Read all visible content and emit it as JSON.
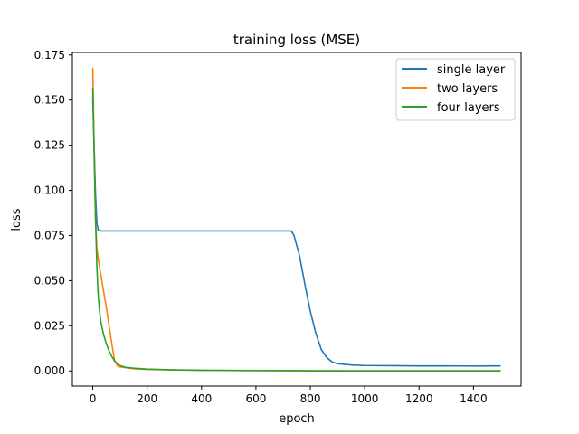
{
  "chart_data": {
    "type": "line",
    "title": "training loss (MSE)",
    "xlabel": "epoch",
    "ylabel": "loss",
    "xlim": [
      -75,
      1575
    ],
    "ylim": [
      -0.0084,
      0.1764
    ],
    "xticks": [
      0,
      200,
      400,
      600,
      800,
      1000,
      1200,
      1400
    ],
    "yticks": [
      0.0,
      0.025,
      0.05,
      0.075,
      0.1,
      0.125,
      0.15,
      0.175
    ],
    "xtick_labels": [
      "0",
      "200",
      "400",
      "600",
      "800",
      "1000",
      "1200",
      "1400"
    ],
    "ytick_labels": [
      "0.000",
      "0.025",
      "0.050",
      "0.075",
      "0.100",
      "0.125",
      "0.150",
      "0.175"
    ],
    "grid": false,
    "legend_position": "top-right",
    "series": [
      {
        "name": "single layer",
        "color": "#1f77b4",
        "x": [
          0,
          5,
          10,
          15,
          20,
          30,
          50,
          100,
          200,
          300,
          400,
          500,
          600,
          700,
          730,
          740,
          760,
          780,
          800,
          820,
          840,
          860,
          880,
          900,
          950,
          1000,
          1100,
          1200,
          1300,
          1400,
          1500
        ],
        "y": [
          0.152,
          0.125,
          0.098,
          0.082,
          0.078,
          0.0775,
          0.0775,
          0.0775,
          0.0775,
          0.0775,
          0.0775,
          0.0775,
          0.0775,
          0.0775,
          0.0775,
          0.075,
          0.064,
          0.048,
          0.033,
          0.021,
          0.012,
          0.0075,
          0.005,
          0.004,
          0.0033,
          0.003,
          0.0029,
          0.0028,
          0.0028,
          0.0027,
          0.0028
        ]
      },
      {
        "name": "two layers",
        "color": "#ff7f0e",
        "x": [
          0,
          5,
          10,
          15,
          20,
          30,
          40,
          50,
          60,
          70,
          80,
          90,
          100,
          150,
          200,
          300,
          400,
          600,
          800,
          1000,
          1200,
          1400,
          1500
        ],
        "y": [
          0.168,
          0.125,
          0.085,
          0.068,
          0.062,
          0.053,
          0.044,
          0.035,
          0.025,
          0.015,
          0.006,
          0.0028,
          0.0022,
          0.0012,
          0.0008,
          0.0005,
          0.0003,
          0.0002,
          0.0001,
          0.0001,
          0.0001,
          0.0001,
          0.0001
        ]
      },
      {
        "name": "four layers",
        "color": "#2ca02c",
        "x": [
          0,
          5,
          10,
          15,
          20,
          25,
          30,
          40,
          50,
          60,
          70,
          80,
          90,
          100,
          120,
          150,
          200,
          300,
          400,
          600,
          800,
          1000,
          1200,
          1400,
          1500
        ],
        "y": [
          0.157,
          0.12,
          0.085,
          0.058,
          0.042,
          0.033,
          0.027,
          0.02,
          0.015,
          0.011,
          0.008,
          0.0055,
          0.004,
          0.003,
          0.002,
          0.0015,
          0.001,
          0.0006,
          0.0004,
          0.0002,
          0.0001,
          0.0,
          0.0,
          0.0,
          0.0
        ]
      }
    ]
  }
}
